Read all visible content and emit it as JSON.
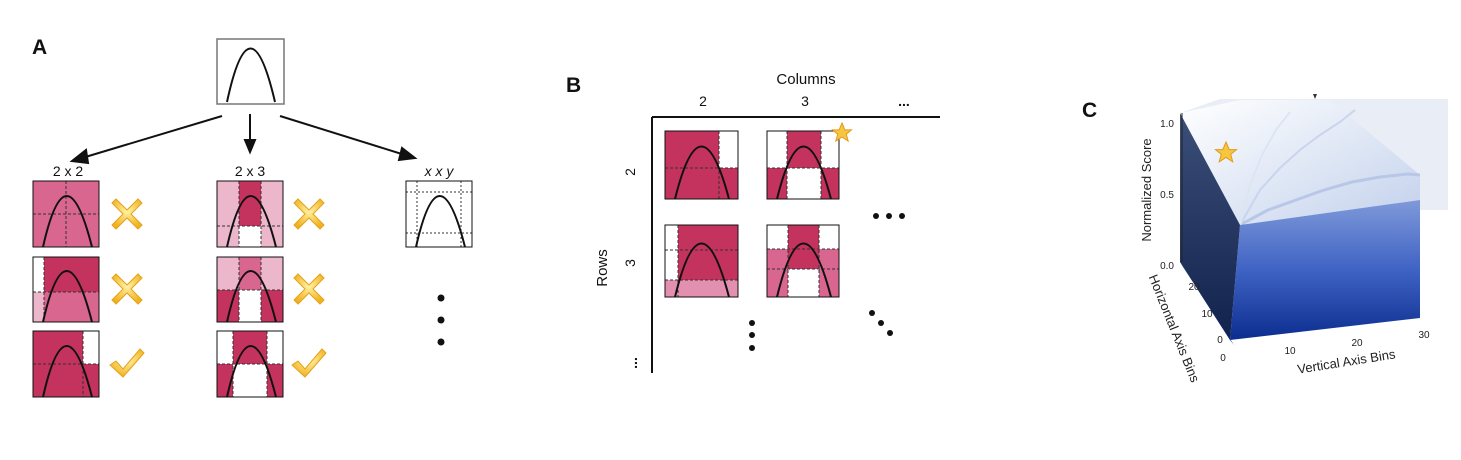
{
  "panel_a": {
    "label": "A",
    "groups": [
      "2 x 2",
      "2 x 3",
      "x x y"
    ]
  },
  "panel_b": {
    "label": "B",
    "columns_title": "Columns",
    "rows_title": "Rows",
    "col_labels": [
      "2",
      "3",
      "..."
    ],
    "row_labels": [
      "2",
      "3",
      "..."
    ]
  },
  "panel_c": {
    "label": "C",
    "z_title": "Normalized Score",
    "x_title": "Vertical Axis Bins",
    "y_title": "Horizontal Axis Bins",
    "z_ticks": [
      "1.0",
      "0.5",
      "0.0"
    ],
    "x_ticks": [
      "0",
      "10",
      "20",
      "30"
    ],
    "y_ticks": [
      "20",
      "10",
      "0"
    ]
  },
  "colors": {
    "dark_pink": "#c4325e",
    "mid_pink": "#d9668f",
    "light_pink": "#ecb6cb",
    "blue_dark": "#0b2d8f",
    "blue_light": "#6f8ed8"
  }
}
